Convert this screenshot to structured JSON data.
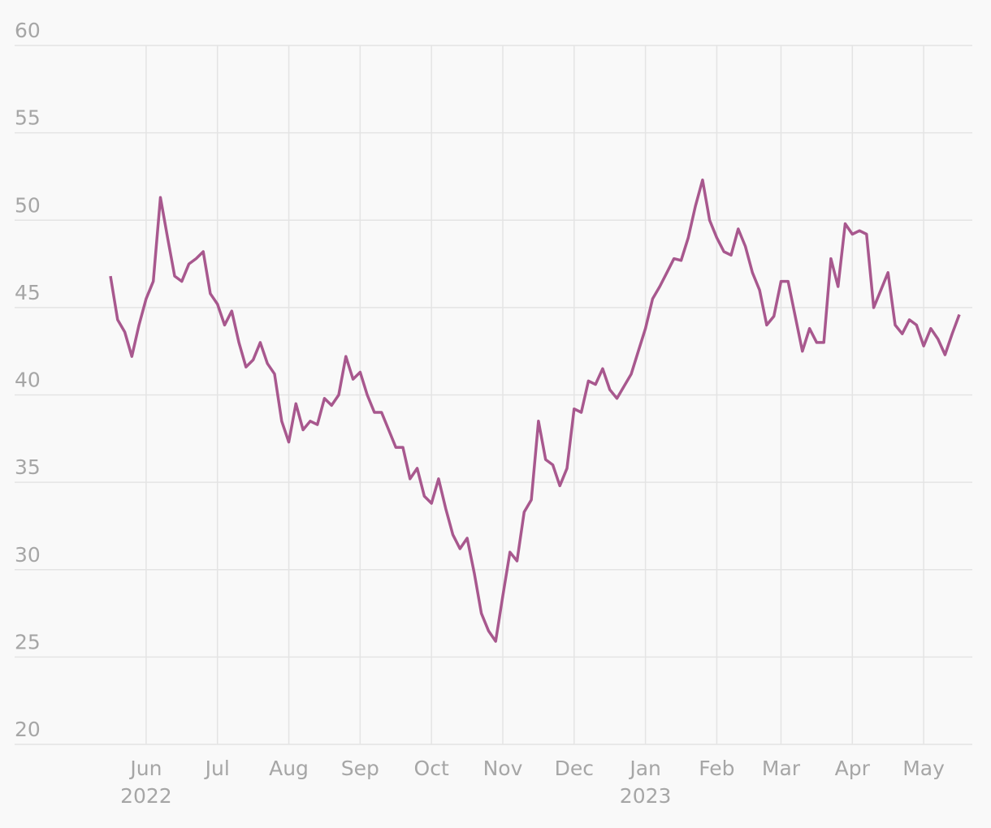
{
  "chart_data": {
    "type": "line",
    "categories": [
      null,
      null,
      null,
      null,
      null,
      "Jun",
      null,
      null,
      null,
      null,
      null,
      null,
      null,
      null,
      null,
      "Jul",
      null,
      null,
      null,
      null,
      null,
      null,
      null,
      null,
      null,
      "Aug",
      null,
      null,
      null,
      null,
      null,
      null,
      null,
      null,
      null,
      "Sep",
      null,
      null,
      null,
      null,
      null,
      null,
      null,
      null,
      null,
      "Oct",
      null,
      null,
      null,
      null,
      null,
      null,
      null,
      null,
      null,
      "Nov",
      null,
      null,
      null,
      null,
      null,
      null,
      null,
      null,
      null,
      "Dec",
      null,
      null,
      null,
      null,
      null,
      null,
      null,
      null,
      null,
      "Jan",
      null,
      null,
      null,
      null,
      null,
      null,
      null,
      null,
      null,
      "Feb",
      null,
      null,
      null,
      null,
      null,
      null,
      null,
      null,
      "Mar",
      null,
      null,
      null,
      null,
      null,
      null,
      null,
      null,
      null,
      "Apr",
      null,
      null,
      null,
      null,
      null,
      null,
      null,
      null,
      null,
      "May",
      null,
      null,
      null,
      null,
      null
    ],
    "categories_year": [
      null,
      null,
      null,
      null,
      null,
      "2022",
      null,
      null,
      null,
      null,
      null,
      null,
      null,
      null,
      null,
      null,
      null,
      null,
      null,
      null,
      null,
      null,
      null,
      null,
      null,
      null,
      null,
      null,
      null,
      null,
      null,
      null,
      null,
      null,
      null,
      null,
      null,
      null,
      null,
      null,
      null,
      null,
      null,
      null,
      null,
      null,
      null,
      null,
      null,
      null,
      null,
      null,
      null,
      null,
      null,
      null,
      null,
      null,
      null,
      null,
      null,
      null,
      null,
      null,
      null,
      null,
      null,
      null,
      null,
      null,
      null,
      null,
      null,
      null,
      null,
      "2023",
      null,
      null,
      null,
      null,
      null,
      null,
      null,
      null,
      null,
      null,
      null,
      null,
      null,
      null,
      null,
      null,
      null,
      null,
      null,
      null,
      null,
      null,
      null,
      null,
      null,
      null,
      null,
      null,
      null,
      null,
      null,
      null,
      null,
      null,
      null,
      null,
      null,
      null,
      null,
      null,
      null,
      null,
      null,
      null
    ],
    "values": [
      46.8,
      44.3,
      43.6,
      42.2,
      44.0,
      45.5,
      46.5,
      51.3,
      49.0,
      46.8,
      46.5,
      47.5,
      47.8,
      48.2,
      45.8,
      45.2,
      44.0,
      44.8,
      43.0,
      41.6,
      42.0,
      43.0,
      41.8,
      41.2,
      38.5,
      37.3,
      39.5,
      38.0,
      38.5,
      38.3,
      39.8,
      39.4,
      40.0,
      42.2,
      40.9,
      41.3,
      40.0,
      39.0,
      39.0,
      38.0,
      37.0,
      37.0,
      35.2,
      35.8,
      34.2,
      33.8,
      35.2,
      33.5,
      32.0,
      31.2,
      31.8,
      29.8,
      27.5,
      26.5,
      25.9,
      28.5,
      31.0,
      30.5,
      33.3,
      34.0,
      38.5,
      36.3,
      36.0,
      34.8,
      35.8,
      39.2,
      39.0,
      40.8,
      40.6,
      41.5,
      40.3,
      39.8,
      40.5,
      41.2,
      42.5,
      43.8,
      45.5,
      46.2,
      47.0,
      47.8,
      47.7,
      49.0,
      50.8,
      52.3,
      50.0,
      49.0,
      48.2,
      48.0,
      49.5,
      48.5,
      47.0,
      46.0,
      44.0,
      44.5,
      46.5,
      46.5,
      44.5,
      42.5,
      43.8,
      43.0,
      43.0,
      47.8,
      46.2,
      49.8,
      49.2,
      49.4,
      49.2,
      45.0,
      46.0,
      47.0,
      44.0,
      43.5,
      44.3,
      44.0,
      42.8,
      43.8,
      43.2,
      42.3,
      43.5,
      44.6
    ],
    "color": "#a8588e",
    "ylim": [
      20,
      60
    ],
    "yticks": [
      20,
      25,
      30,
      35,
      40,
      45,
      50,
      55,
      60
    ],
    "grid": true
  }
}
